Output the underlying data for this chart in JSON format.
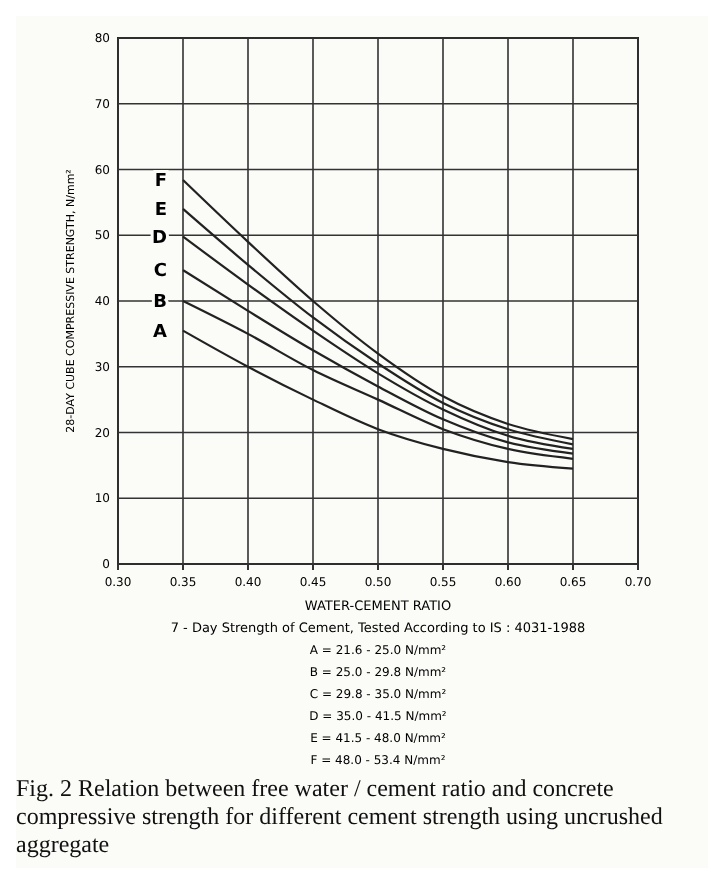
{
  "chart_data": {
    "type": "line",
    "ylabel": "28-DAY CUBE COMPRESSIVE STRENGTH, N/mm²",
    "xlabel": "WATER-CEMENT RATIO",
    "x": [
      0.35,
      0.4,
      0.45,
      0.5,
      0.55,
      0.6,
      0.65
    ],
    "series": [
      {
        "name": "A",
        "color": "#222222",
        "values": [
          35.5,
          30,
          25,
          20.5,
          17.5,
          15.5,
          14.5
        ]
      },
      {
        "name": "B",
        "color": "#222222",
        "values": [
          40,
          35,
          29.5,
          25,
          20.5,
          17.5,
          16
        ]
      },
      {
        "name": "C",
        "color": "#222222",
        "values": [
          44.7,
          38.5,
          32.5,
          27,
          22,
          18.5,
          16.8
        ]
      },
      {
        "name": "D",
        "color": "#222222",
        "values": [
          49.8,
          42.5,
          35.5,
          29,
          23.5,
          19.5,
          17.5
        ]
      },
      {
        "name": "E",
        "color": "#222222",
        "values": [
          54,
          45.5,
          37.5,
          30.5,
          24.5,
          20.5,
          18.2
        ]
      },
      {
        "name": "F",
        "color": "#222222",
        "values": [
          58.4,
          49,
          40,
          32,
          25.5,
          21.3,
          19
        ]
      }
    ],
    "xlim": [
      0.3,
      0.7
    ],
    "xticks": [
      {
        "value": 0.3,
        "label": "0.30"
      },
      {
        "value": 0.35,
        "label": "0.35"
      },
      {
        "value": 0.4,
        "label": "0.40"
      },
      {
        "value": 0.45,
        "label": "0.45"
      },
      {
        "value": 0.5,
        "label": "0.50"
      },
      {
        "value": 0.55,
        "label": "0.55"
      },
      {
        "value": 0.6,
        "label": "0.60"
      },
      {
        "value": 0.65,
        "label": "0.65"
      },
      {
        "value": 0.7,
        "label": "0.70"
      }
    ],
    "ylim": [
      0,
      80
    ],
    "yticks": [
      0,
      10,
      20,
      30,
      40,
      50,
      60,
      70,
      80
    ],
    "grid": true,
    "marker": "none",
    "line_style": "solid",
    "annotations": [
      "7 - Day Strength of Cement, Tested According to IS : 4031-1988",
      "A = 21.6 - 25.0 N/mm²",
      "B = 25.0 - 29.8 N/mm²",
      "C = 29.8 - 35.0 N/mm²",
      "D = 35.0 - 41.5 N/mm²",
      "E = 41.5 - 48.0 N/mm²",
      "F = 48.0 - 53.4 N/mm²",
      "Fig. 2 Relation between free water / cement ratio and concrete compressive strength for different cement strength using uncrushed aggregate"
    ]
  }
}
